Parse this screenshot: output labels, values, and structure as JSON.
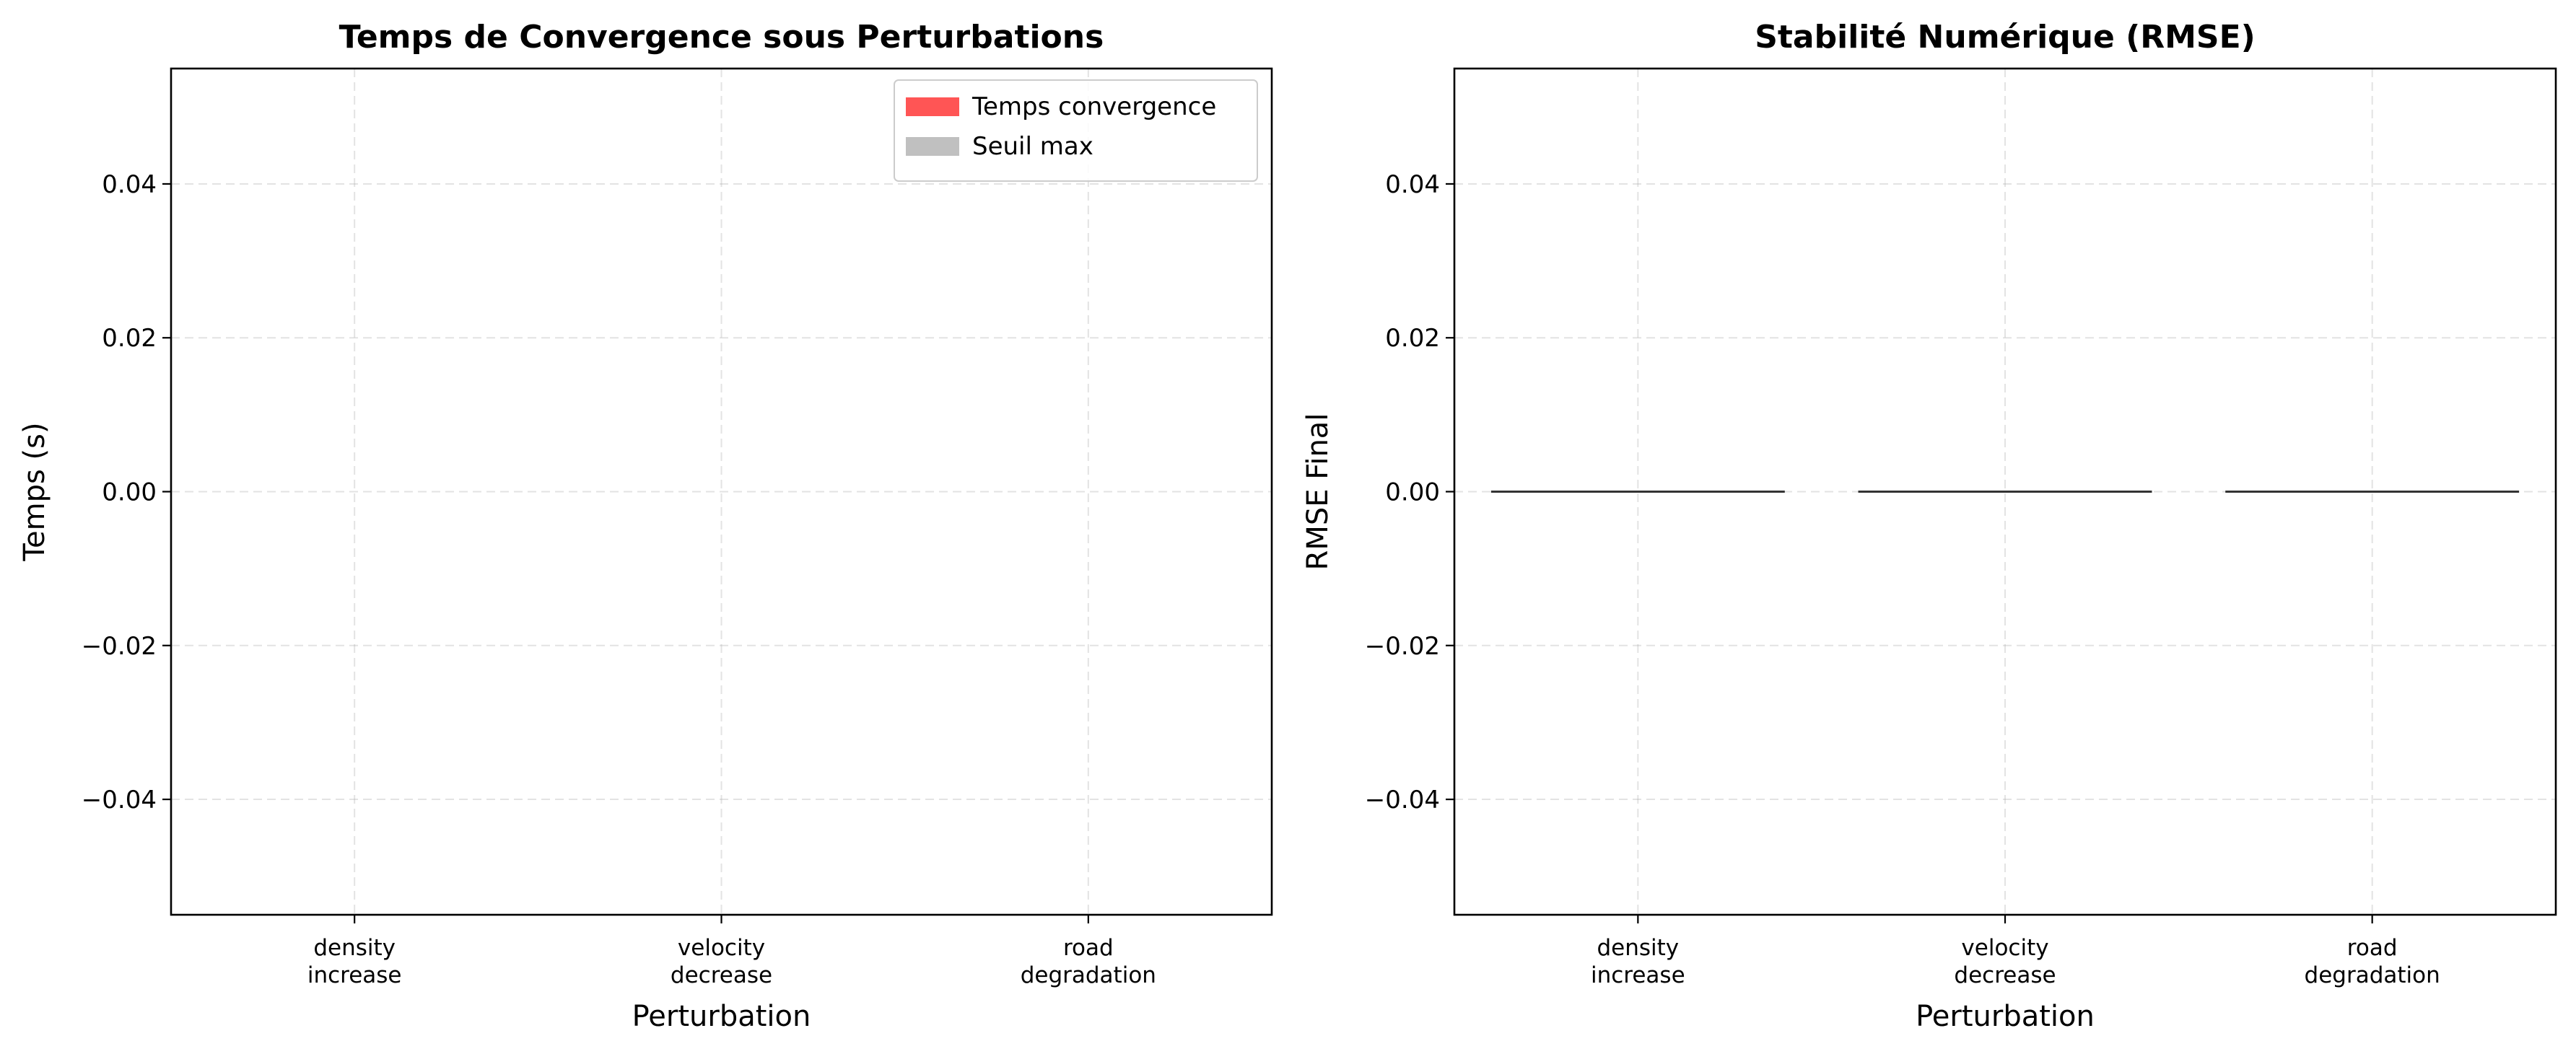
{
  "chart_data": [
    {
      "type": "bar",
      "title": "Temps de Convergence sous Perturbations",
      "xlabel": "Perturbation",
      "ylabel": "Temps (s)",
      "categories": [
        [
          "density",
          "increase"
        ],
        [
          "velocity",
          "decrease"
        ],
        [
          "road",
          "degradation"
        ]
      ],
      "ylim": [
        -0.055,
        0.055
      ],
      "yticks": [
        0.04,
        0.02,
        0.0,
        -0.02,
        -0.04
      ],
      "ytick_labels": [
        "0.04",
        "0.02",
        "0.00",
        "−0.02",
        "−0.04"
      ],
      "grid": true,
      "legend_position": "top-right",
      "series": [
        {
          "name": "Temps convergence",
          "color": "#ff5555",
          "values": [
            0,
            0,
            0
          ]
        },
        {
          "name": "Seuil max",
          "color": "#c0c0c0",
          "values": [
            0,
            0,
            0
          ]
        }
      ]
    },
    {
      "type": "bar",
      "title": "Stabilité Numérique (RMSE)",
      "xlabel": "Perturbation",
      "ylabel": "RMSE Final",
      "categories": [
        [
          "density",
          "increase"
        ],
        [
          "velocity",
          "decrease"
        ],
        [
          "road",
          "degradation"
        ]
      ],
      "ylim": [
        -0.055,
        0.055
      ],
      "yticks": [
        0.04,
        0.02,
        0.0,
        -0.02,
        -0.04
      ],
      "ytick_labels": [
        "0.04",
        "0.02",
        "0.00",
        "−0.02",
        "−0.04"
      ],
      "grid": true,
      "series": [
        {
          "color": "#333333",
          "values": [
            0,
            0,
            0
          ]
        }
      ]
    }
  ]
}
